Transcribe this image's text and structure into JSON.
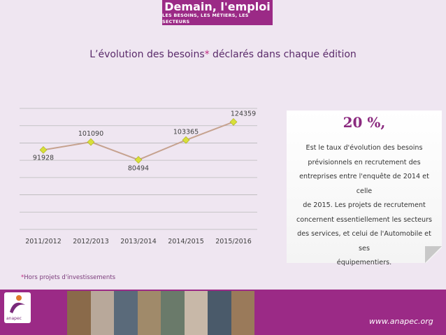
{
  "banner": {
    "title": "Demain, l'emploi",
    "subtitle": "LES BESOINS, LES MÉTIERS, LES SECTEURS"
  },
  "title": {
    "main": "L’évolution des besoins",
    "star": "*",
    "rest": " déclarés dans chaque édition"
  },
  "chart_data": {
    "type": "line",
    "categories": [
      "2011/2012",
      "2012/2013",
      "2013/2014",
      "2014/2015",
      "2015/2016"
    ],
    "values": [
      91928,
      101090,
      80494,
      103365,
      124359
    ],
    "data_labels": [
      "91928",
      "101090",
      "80494",
      "103365",
      "124359"
    ],
    "title": "",
    "xlabel": "",
    "ylabel": "",
    "ylim": [
      0,
      140000
    ],
    "grid": true,
    "line_color": "#c6a28f",
    "marker_color": "#d8df3a"
  },
  "note": {
    "percent": "20 %,",
    "lines": [
      "Est le taux d'évolution des besoins",
      "prévisionnels en recrutement des",
      "entreprises entre l'enquête de 2014 et celle",
      "de 2015. Les projets de recrutement",
      "concernent essentiellement les secteurs",
      "des services, et celui de l'Automobile et ses",
      "équipementiers."
    ]
  },
  "footnote": {
    "star": "*",
    "text": "Hors projets d'investissements"
  },
  "footer": {
    "logo_text": "anapec",
    "url": "www.anapec.org"
  },
  "colors": {
    "brand_purple": "#9b2a86",
    "background": "#efe6f1"
  }
}
